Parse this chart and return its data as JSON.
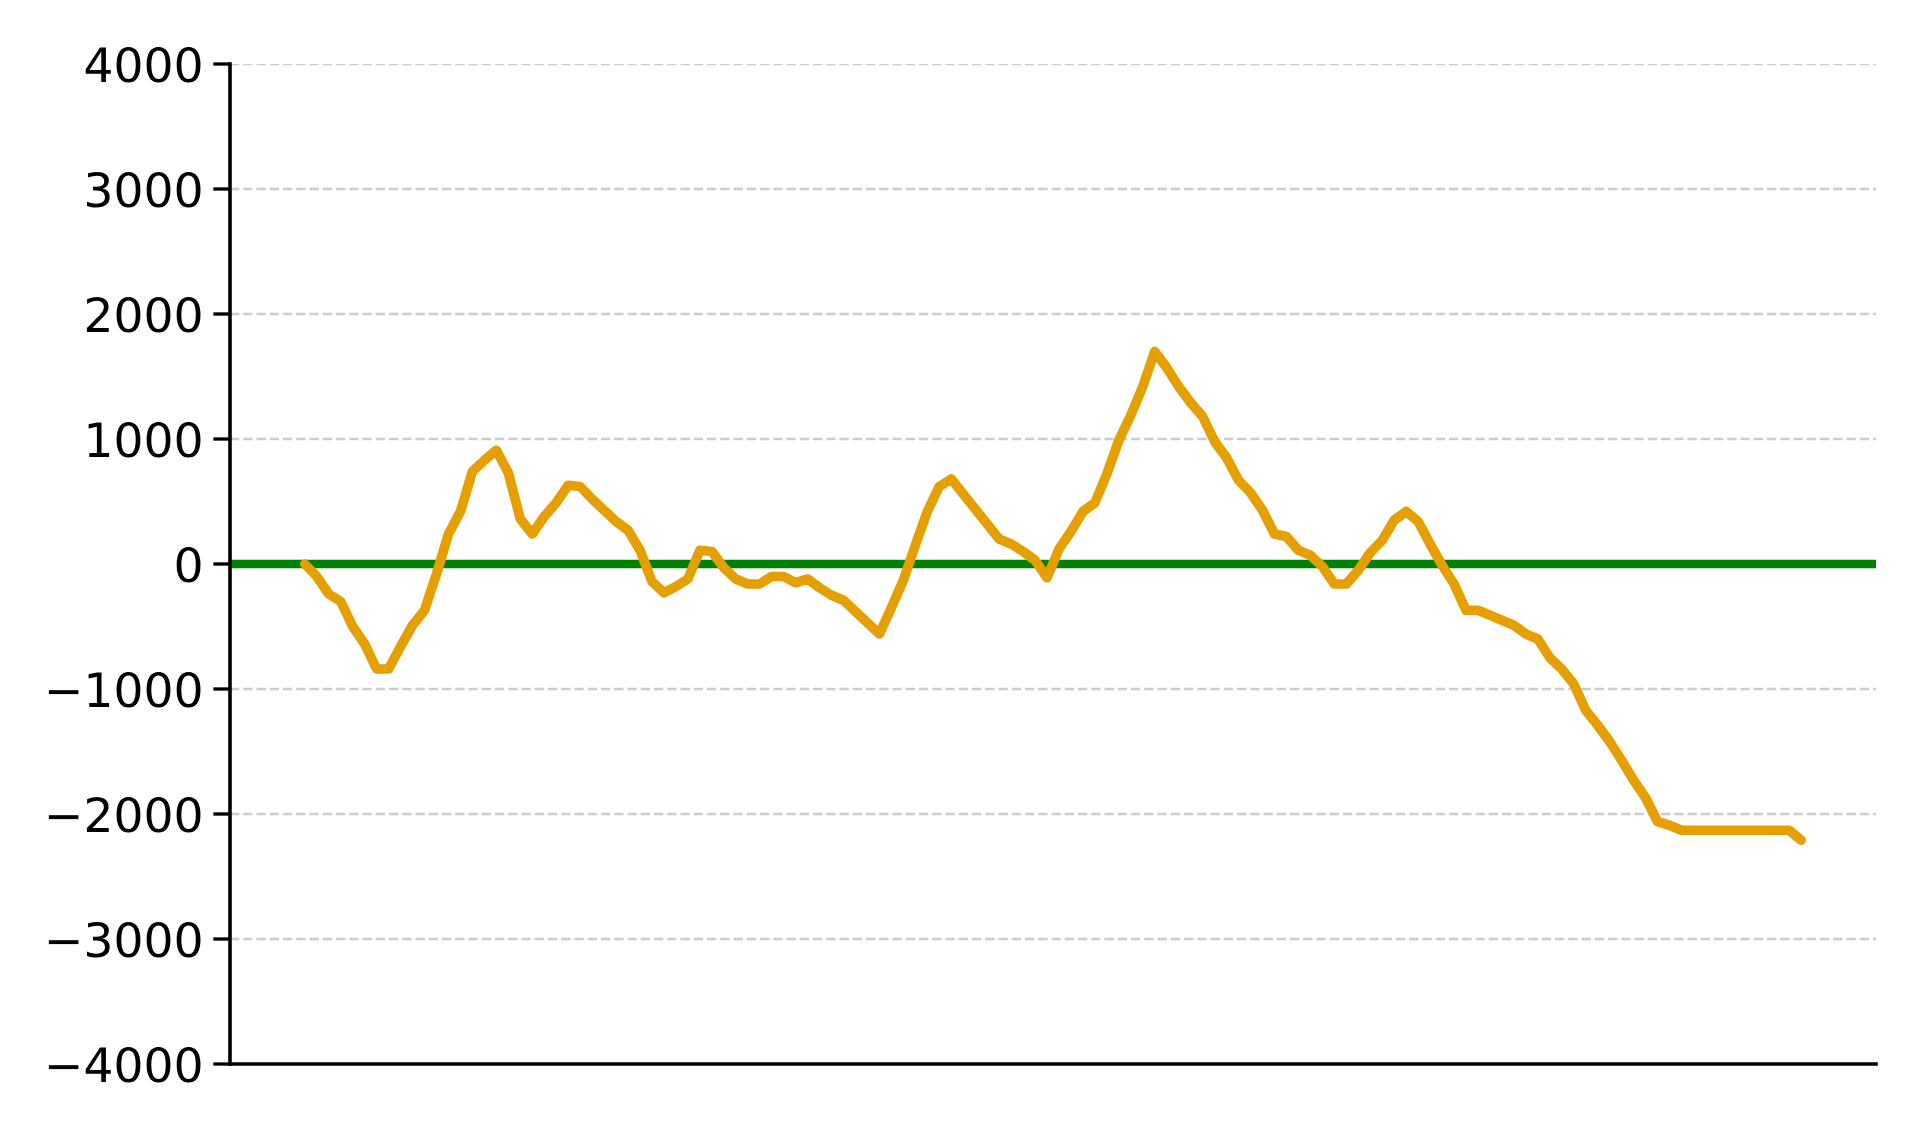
{
  "chart_data": {
    "type": "line",
    "categories": [
      null,
      null,
      null,
      null,
      null,
      null,
      null,
      null,
      null,
      null,
      null,
      null,
      null,
      null,
      null,
      null,
      null,
      null,
      null,
      null,
      null,
      null,
      null,
      null,
      null,
      null,
      null,
      null,
      null,
      null,
      null,
      null,
      null,
      null,
      null,
      null,
      null,
      null,
      null,
      null,
      null,
      null,
      null,
      null,
      null,
      null,
      null,
      null,
      null,
      null,
      null,
      null,
      null,
      null,
      null,
      null,
      null,
      null,
      null,
      null,
      null,
      null,
      null,
      null,
      null,
      null,
      null,
      null,
      null,
      null,
      null,
      null,
      null,
      null,
      null,
      null,
      null,
      null,
      null,
      null,
      null,
      null,
      null,
      null,
      null,
      null,
      null,
      null,
      null,
      null,
      null,
      null,
      null,
      null,
      null,
      null,
      null,
      null,
      null,
      null,
      null,
      null,
      null,
      null,
      null,
      null,
      null,
      null,
      null,
      null,
      null,
      null,
      null,
      null,
      null,
      null,
      null,
      null,
      null,
      null,
      null,
      null,
      null,
      null,
      null,
      null
    ],
    "series": [
      {
        "color": "#e69f00",
        "values": [
          0,
          -100,
          -240,
          -300,
          -500,
          -640,
          -840,
          -840,
          -660,
          -490,
          -370,
          -80,
          240,
          420,
          740,
          830,
          910,
          730,
          360,
          240,
          380,
          490,
          630,
          620,
          520,
          430,
          340,
          270,
          110,
          -140,
          -230,
          -180,
          -120,
          110,
          100,
          -30,
          -120,
          -160,
          -160,
          -100,
          -100,
          -150,
          -120,
          -190,
          -250,
          -290,
          -380,
          -470,
          -560,
          -350,
          -130,
          150,
          420,
          620,
          680,
          560,
          440,
          320,
          200,
          160,
          100,
          30,
          -110,
          120,
          260,
          420,
          490,
          720,
          990,
          1190,
          1420,
          1700,
          1570,
          1420,
          1290,
          1180,
          980,
          850,
          670,
          570,
          430,
          240,
          220,
          110,
          70,
          -20,
          -160,
          -160,
          -50,
          90,
          190,
          350,
          420,
          340,
          160,
          -10,
          -160,
          -370,
          -370,
          -410,
          -450,
          -490,
          -560,
          -600,
          -750,
          -840,
          -960,
          -1170,
          -1290,
          -1420,
          -1570,
          -1730,
          -1870,
          -2060,
          -2090,
          -2130,
          -2130,
          -2130,
          -2130,
          -2130,
          -2130,
          -2130,
          -2130,
          -2130,
          -2130,
          -2210
        ]
      }
    ],
    "ylim": [
      -4000,
      4000
    ],
    "yticks": [
      -4000,
      -3000,
      -2000,
      -1000,
      0,
      1000,
      2000,
      3000,
      4000
    ],
    "grid": "y",
    "ref_lines": [
      {
        "axis": "y",
        "value": 0,
        "color": "#008000",
        "line_style": "solid"
      }
    ]
  }
}
